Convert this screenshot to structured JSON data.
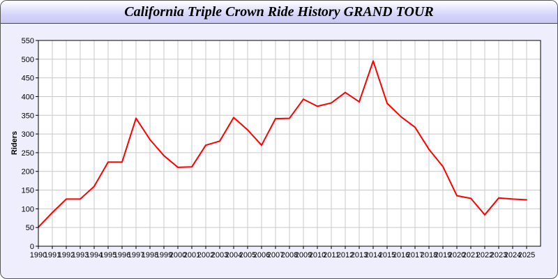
{
  "chart_data": {
    "type": "line",
    "title": "California Triple Crown Ride History GRAND TOUR",
    "xlabel": "",
    "ylabel": "Riders",
    "ylim": [
      0,
      550
    ],
    "yticks": [
      0,
      50,
      100,
      150,
      200,
      250,
      300,
      350,
      400,
      450,
      500,
      550
    ],
    "grid": true,
    "line_color": "#ff0000",
    "x": [
      "1990",
      "1991",
      "1992",
      "1993",
      "1994",
      "1995",
      "1996",
      "1997",
      "1998",
      "1999",
      "2000",
      "2001",
      "2002",
      "2003",
      "2004",
      "2005",
      "2006",
      "2007",
      "2008",
      "2009",
      "2010",
      "2011",
      "2012",
      "2013",
      "2014",
      "2015",
      "2016",
      "2017",
      "2018",
      "2019",
      "2020",
      "2021",
      "2022",
      "2023",
      "2024",
      "2025"
    ],
    "series": [
      {
        "values": [
          51,
          90,
          126,
          126,
          160,
          225,
          225,
          342,
          285,
          242,
          211,
          212,
          270,
          281,
          344,
          311,
          270,
          341,
          342,
          393,
          374,
          383,
          411,
          386,
          495,
          382,
          346,
          318,
          259,
          213,
          135,
          128,
          84,
          129,
          126,
          124
        ]
      }
    ]
  }
}
